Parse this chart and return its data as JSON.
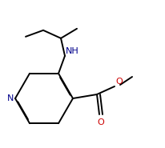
{
  "bg_color": "#ffffff",
  "lc": "#000000",
  "lw": 1.4,
  "dbo": 0.012,
  "figsize": [
    2.06,
    1.85
  ],
  "dpi": 100,
  "xlim": [
    0,
    206
  ],
  "ylim": [
    0,
    185
  ],
  "N_color": "#00008B",
  "NH_color": "#00008B",
  "O_color": "#cc0000"
}
